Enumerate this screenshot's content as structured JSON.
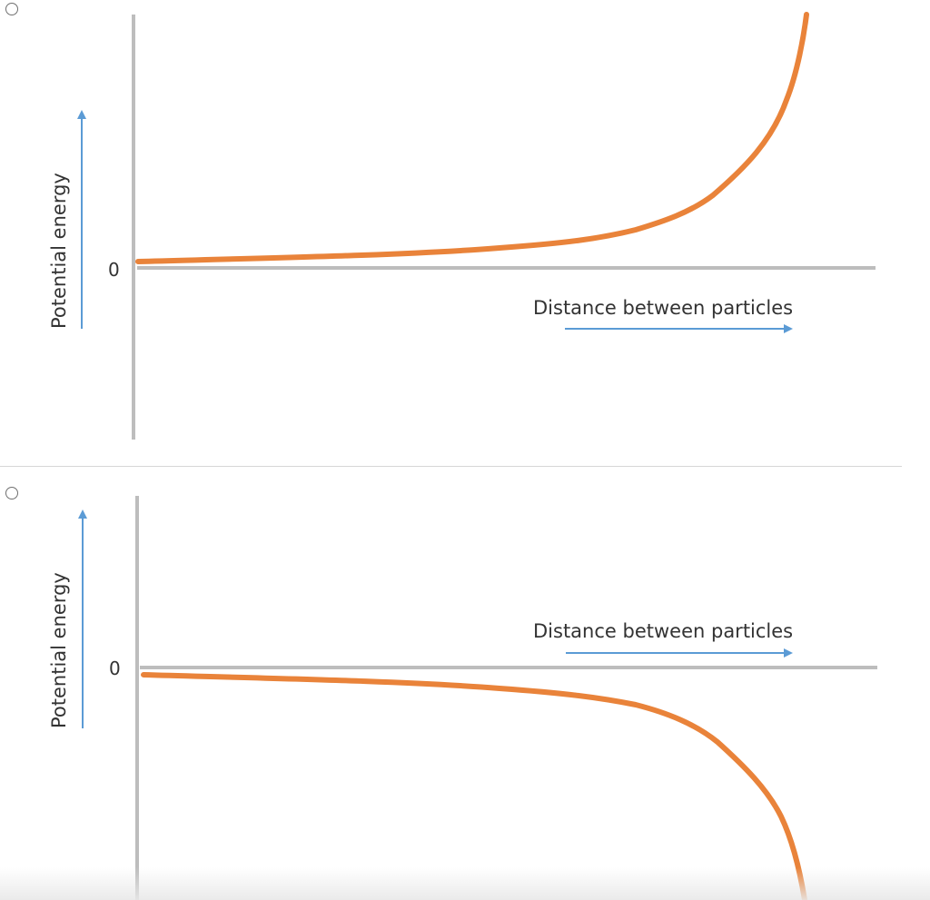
{
  "options": [
    {
      "id": "repulsive",
      "chart_data": {
        "type": "line",
        "title": "",
        "xlabel": "Distance between particles",
        "ylabel": "Potential energy",
        "y_zero_label": "0",
        "grid": false,
        "series": [
          {
            "color": "#e9833a",
            "x": [
              0.0,
              0.5,
              0.65,
              0.75,
              0.8,
              0.85,
              0.9,
              0.92,
              0.94
            ],
            "y": [
              0.05,
              0.15,
              0.3,
              0.5,
              0.9,
              1.6,
              2.7,
              3.6,
              5.0
            ]
          }
        ]
      }
    },
    {
      "id": "attractive",
      "chart_data": {
        "type": "line",
        "title": "",
        "xlabel": "Distance between particles",
        "ylabel": "Potential energy",
        "y_zero_label": "0",
        "grid": false,
        "series": [
          {
            "color": "#e9833a",
            "x": [
              0.0,
              0.5,
              0.65,
              0.75,
              0.8,
              0.85,
              0.9,
              0.92,
              0.94
            ],
            "y": [
              -0.05,
              -0.15,
              -0.3,
              -0.5,
              -0.9,
              -1.6,
              -2.7,
              -3.6,
              -5.0
            ]
          }
        ]
      }
    }
  ],
  "colors": {
    "axis": "#bdbdbd",
    "arrow": "#5b9bd5",
    "curve": "#e9833a",
    "text": "#333333"
  }
}
